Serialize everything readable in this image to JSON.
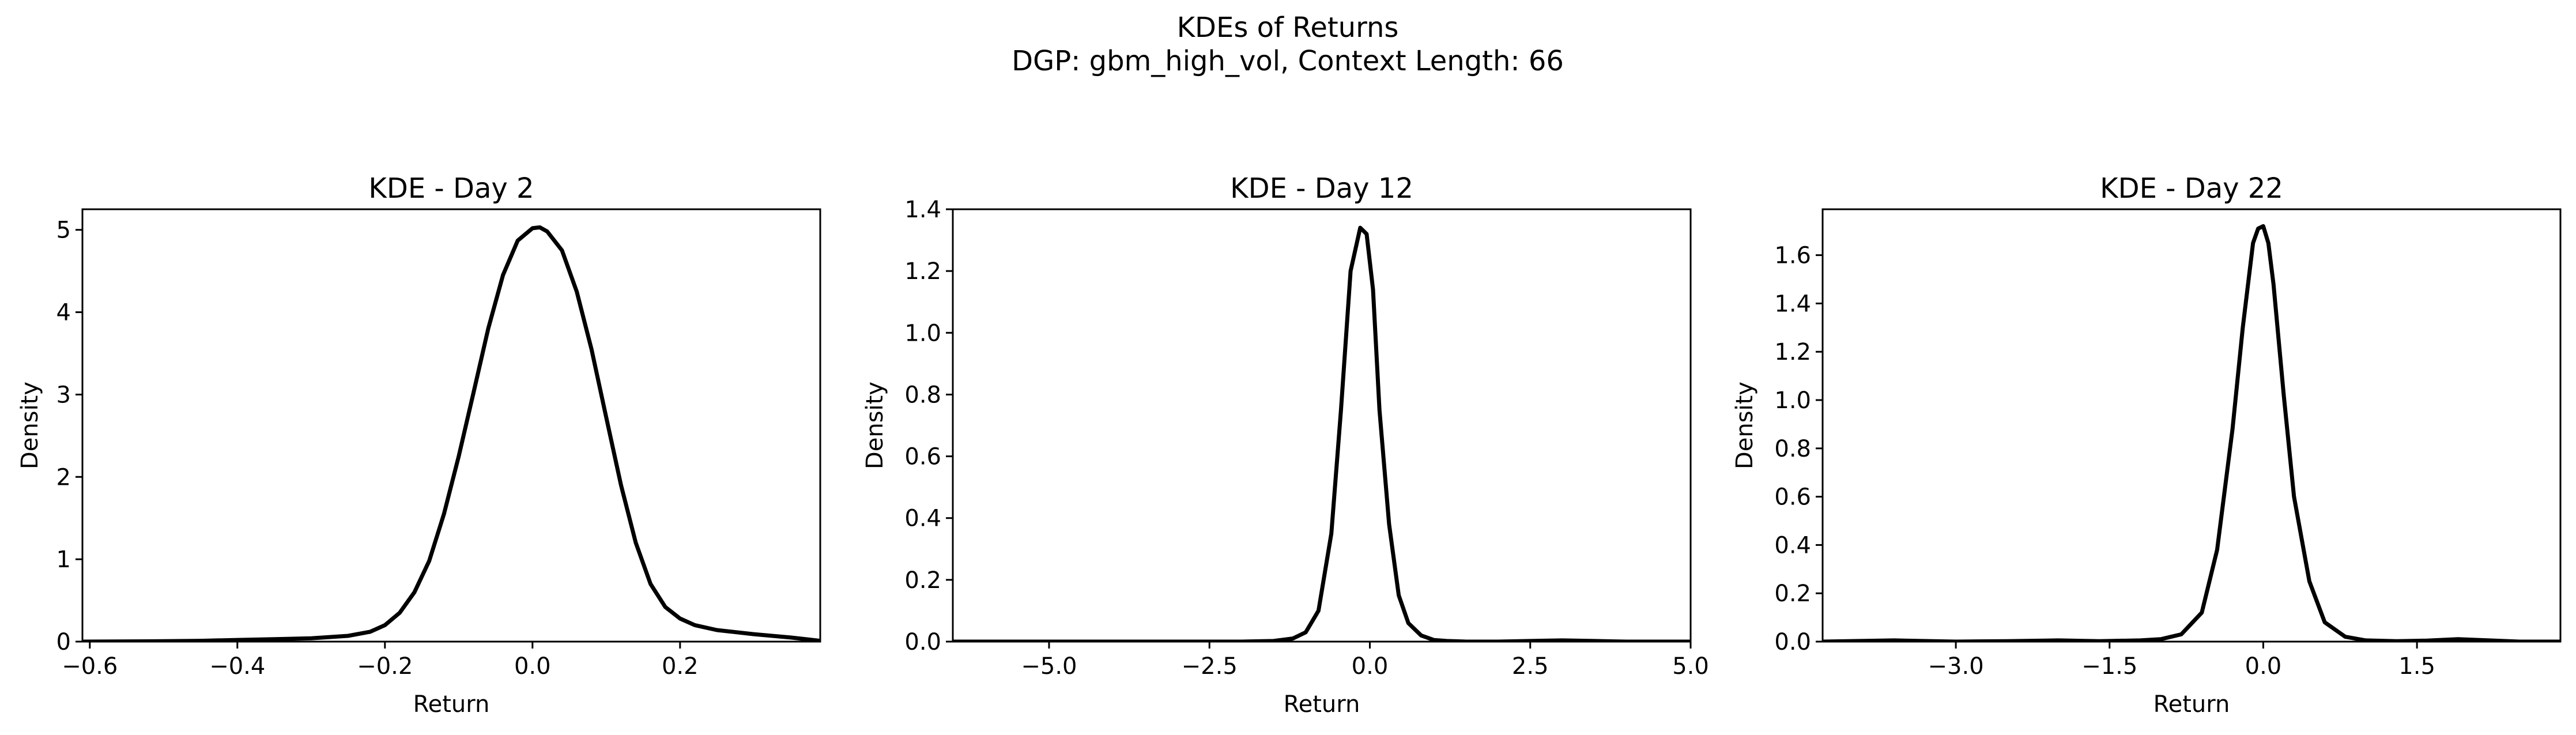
{
  "figure": {
    "suptitle_line1": "KDEs of Returns",
    "suptitle_line2": "DGP: gbm_high_vol, Context Length: 66"
  },
  "chart_data": [
    {
      "type": "line",
      "title": "KDE - Day 2",
      "xlabel": "Return",
      "ylabel": "Density",
      "xlim": [
        -0.61,
        0.39
      ],
      "ylim": [
        0,
        5.25
      ],
      "xticks": [
        -0.6,
        -0.4,
        -0.2,
        0.0,
        0.2
      ],
      "xtick_labels": [
        "−0.6",
        "−0.4",
        "−0.2",
        "0.0",
        "0.2"
      ],
      "yticks": [
        0,
        1,
        2,
        3,
        4,
        5
      ],
      "ytick_labels": [
        "0",
        "1",
        "2",
        "3",
        "4",
        "5"
      ],
      "grid": false,
      "series": [
        {
          "x": [
            -0.61,
            -0.5,
            -0.45,
            -0.4,
            -0.35,
            -0.3,
            -0.25,
            -0.22,
            -0.2,
            -0.18,
            -0.16,
            -0.14,
            -0.12,
            -0.1,
            -0.08,
            -0.06,
            -0.04,
            -0.02,
            0.0,
            0.01,
            0.02,
            0.04,
            0.06,
            0.08,
            0.1,
            0.12,
            0.14,
            0.16,
            0.18,
            0.2,
            0.22,
            0.25,
            0.3,
            0.35,
            0.39
          ],
          "y": [
            0.0,
            0.005,
            0.01,
            0.02,
            0.03,
            0.04,
            0.07,
            0.12,
            0.2,
            0.35,
            0.6,
            0.98,
            1.55,
            2.25,
            3.02,
            3.8,
            4.45,
            4.87,
            5.02,
            5.03,
            4.98,
            4.75,
            4.25,
            3.55,
            2.72,
            1.9,
            1.2,
            0.7,
            0.42,
            0.28,
            0.2,
            0.14,
            0.09,
            0.05,
            0.01
          ]
        }
      ]
    },
    {
      "type": "line",
      "title": "KDE - Day 12",
      "xlabel": "Return",
      "ylabel": "Density",
      "xlim": [
        -6.5,
        5.0
      ],
      "ylim": [
        0,
        1.4
      ],
      "xticks": [
        -5.0,
        -2.5,
        0.0,
        2.5,
        5.0
      ],
      "xtick_labels": [
        "−5.0",
        "−2.5",
        "0.0",
        "2.5",
        "5.0"
      ],
      "yticks": [
        0.0,
        0.2,
        0.4,
        0.6,
        0.8,
        1.0,
        1.2,
        1.4
      ],
      "ytick_labels": [
        "0.0",
        "0.2",
        "0.4",
        "0.6",
        "0.8",
        "1.0",
        "1.2",
        "1.4"
      ],
      "grid": false,
      "series": [
        {
          "x": [
            -6.5,
            -5.0,
            -3.0,
            -2.0,
            -1.5,
            -1.2,
            -1.0,
            -0.8,
            -0.6,
            -0.45,
            -0.3,
            -0.15,
            -0.05,
            0.05,
            0.15,
            0.3,
            0.45,
            0.6,
            0.8,
            1.0,
            1.2,
            1.5,
            2.0,
            2.5,
            3.0,
            3.5,
            4.0,
            5.0
          ],
          "y": [
            0.0,
            0.0,
            0.0,
            0.0,
            0.002,
            0.01,
            0.03,
            0.1,
            0.35,
            0.75,
            1.2,
            1.34,
            1.32,
            1.14,
            0.75,
            0.38,
            0.15,
            0.06,
            0.02,
            0.005,
            0.002,
            0.0,
            0.0,
            0.002,
            0.004,
            0.002,
            0.0,
            0.0
          ]
        }
      ]
    },
    {
      "type": "line",
      "title": "KDE - Day 22",
      "xlabel": "Return",
      "ylabel": "Density",
      "xlim": [
        -4.3,
        2.9
      ],
      "ylim": [
        0,
        1.79
      ],
      "xticks": [
        -3.0,
        -1.5,
        0.0,
        1.5
      ],
      "xtick_labels": [
        "−3.0",
        "−1.5",
        "0.0",
        "1.5"
      ],
      "yticks": [
        0.0,
        0.2,
        0.4,
        0.6,
        0.8,
        1.0,
        1.2,
        1.4,
        1.6
      ],
      "ytick_labels": [
        "0.0",
        "0.2",
        "0.4",
        "0.6",
        "0.8",
        "1.0",
        "1.2",
        "1.4",
        "1.6"
      ],
      "grid": false,
      "series": [
        {
          "x": [
            -4.3,
            -3.6,
            -3.0,
            -2.5,
            -2.0,
            -1.6,
            -1.2,
            -1.0,
            -0.8,
            -0.6,
            -0.45,
            -0.3,
            -0.2,
            -0.1,
            -0.05,
            0.0,
            0.05,
            0.1,
            0.2,
            0.3,
            0.45,
            0.6,
            0.8,
            1.0,
            1.3,
            1.6,
            1.9,
            2.2,
            2.5,
            2.9
          ],
          "y": [
            0.0,
            0.005,
            0.0,
            0.002,
            0.005,
            0.002,
            0.005,
            0.01,
            0.03,
            0.12,
            0.38,
            0.88,
            1.3,
            1.65,
            1.71,
            1.72,
            1.65,
            1.48,
            1.02,
            0.6,
            0.25,
            0.08,
            0.02,
            0.005,
            0.002,
            0.004,
            0.01,
            0.005,
            0.0,
            0.0
          ]
        }
      ]
    }
  ]
}
